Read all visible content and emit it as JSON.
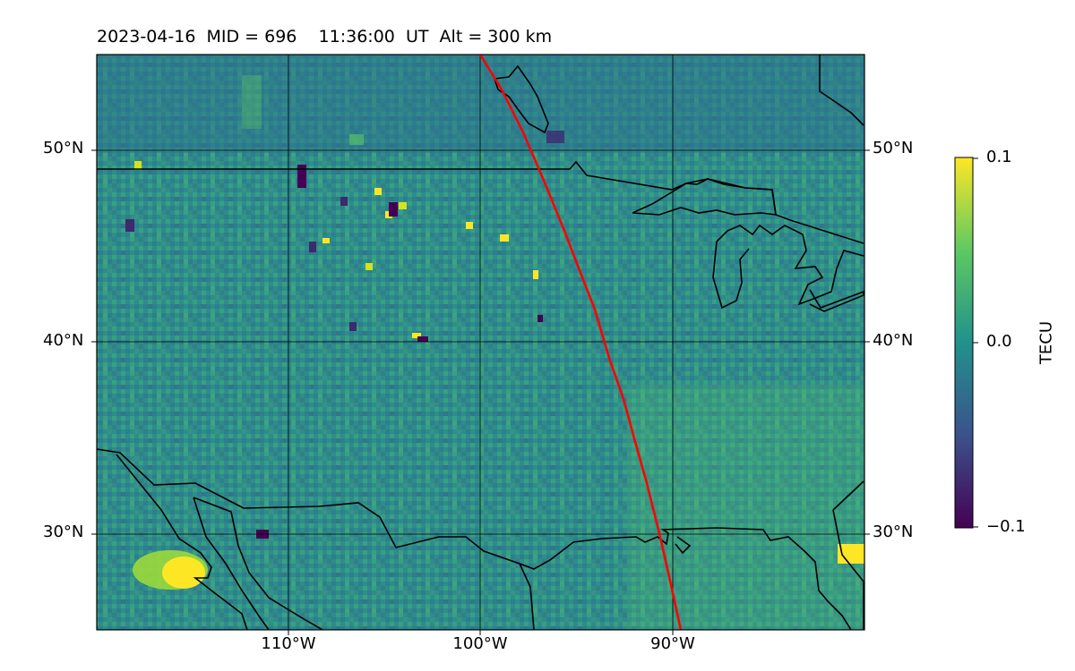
{
  "map": {
    "title": "2023-04-16  MID = 696    11:36:00  UT  Alt = 300 km",
    "lat_labels": [
      "50°N",
      "40°N",
      "30°N"
    ],
    "lon_labels": [
      "110°W",
      "100°W",
      "90°W"
    ],
    "extent": {
      "lon_min": -120,
      "lon_max": -80,
      "lat_min": 25,
      "lat_max": 55
    },
    "gridlines": {
      "lon": [
        -110,
        -100,
        -90
      ],
      "lat": [
        50,
        40,
        30
      ]
    },
    "track_color": "#ff0000",
    "coastline_color": "#000000"
  },
  "colorbar": {
    "label": "TECU",
    "max_label": "0.1",
    "mid_label": "0.0",
    "min_label": "−0.1",
    "range": [
      -0.1,
      0.1
    ],
    "colormap": "viridis",
    "stops": [
      "#440154",
      "#3b528b",
      "#21918c",
      "#5ec962",
      "#fde725"
    ]
  }
}
